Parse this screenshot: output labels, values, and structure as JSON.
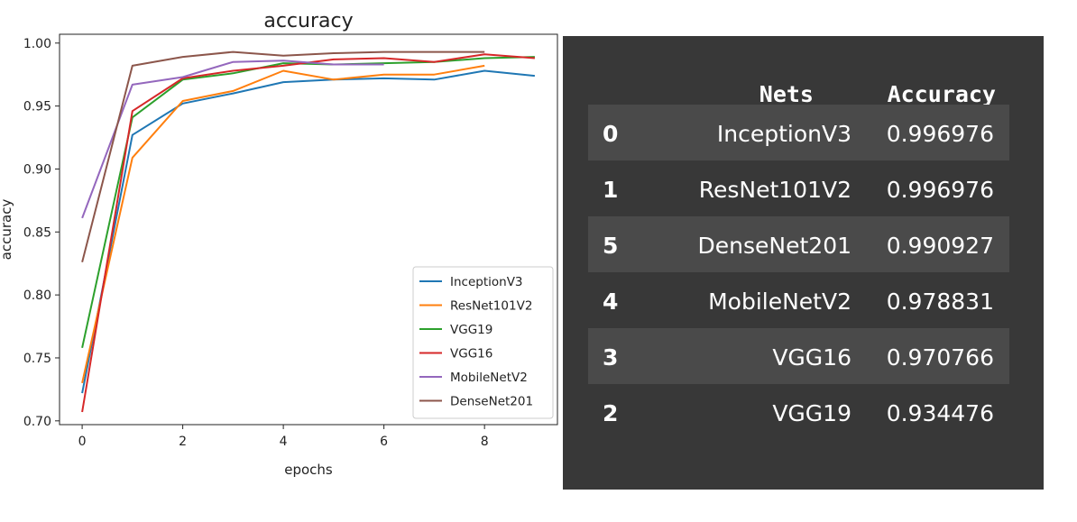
{
  "chart_data": {
    "type": "line",
    "title": "accuracy",
    "xlabel": "epochs",
    "ylabel": "accuracy",
    "xlim": [
      -0.45,
      9.45
    ],
    "ylim": [
      0.697,
      1.007
    ],
    "xticks": [
      0,
      2,
      4,
      6,
      8
    ],
    "yticks": [
      0.7,
      0.75,
      0.8,
      0.85,
      0.9,
      0.95,
      1.0
    ],
    "x": [
      0,
      1,
      2,
      3,
      4,
      5,
      6,
      7,
      8,
      9
    ],
    "legend_position": "lower right",
    "series": [
      {
        "name": "InceptionV3",
        "color": "#1f77b4",
        "values": [
          0.722,
          0.927,
          0.952,
          0.96,
          0.969,
          0.971,
          0.972,
          0.971,
          0.978,
          0.974
        ]
      },
      {
        "name": "ResNet101V2",
        "color": "#ff7f0e",
        "values": [
          0.73,
          0.909,
          0.954,
          0.962,
          0.978,
          0.971,
          0.975,
          0.975,
          0.982,
          null
        ]
      },
      {
        "name": "VGG19",
        "color": "#2ca02c",
        "values": [
          0.758,
          0.941,
          0.971,
          0.976,
          0.984,
          0.983,
          0.984,
          0.985,
          0.988,
          0.989
        ]
      },
      {
        "name": "VGG16",
        "color": "#d62728",
        "values": [
          0.707,
          0.946,
          0.972,
          0.978,
          0.982,
          0.987,
          0.988,
          0.985,
          0.991,
          0.988
        ]
      },
      {
        "name": "MobileNetV2",
        "color": "#9467bd",
        "values": [
          0.861,
          0.967,
          0.973,
          0.985,
          0.986,
          0.983,
          0.983,
          null,
          null,
          null
        ]
      },
      {
        "name": "DenseNet201",
        "color": "#8c564b",
        "values": [
          0.826,
          0.982,
          0.989,
          0.993,
          0.99,
          0.992,
          0.993,
          0.993,
          0.993,
          null
        ]
      }
    ]
  },
  "table": {
    "columns": [
      "",
      "Nets",
      "Accuracy"
    ],
    "rows": [
      {
        "index": "0",
        "net": "InceptionV3",
        "accuracy": "0.996976"
      },
      {
        "index": "1",
        "net": "ResNet101V2",
        "accuracy": "0.996976"
      },
      {
        "index": "5",
        "net": "DenseNet201",
        "accuracy": "0.990927"
      },
      {
        "index": "4",
        "net": "MobileNetV2",
        "accuracy": "0.978831"
      },
      {
        "index": "3",
        "net": "VGG16",
        "accuracy": "0.970766"
      },
      {
        "index": "2",
        "net": "VGG19",
        "accuracy": "0.934476"
      }
    ]
  }
}
